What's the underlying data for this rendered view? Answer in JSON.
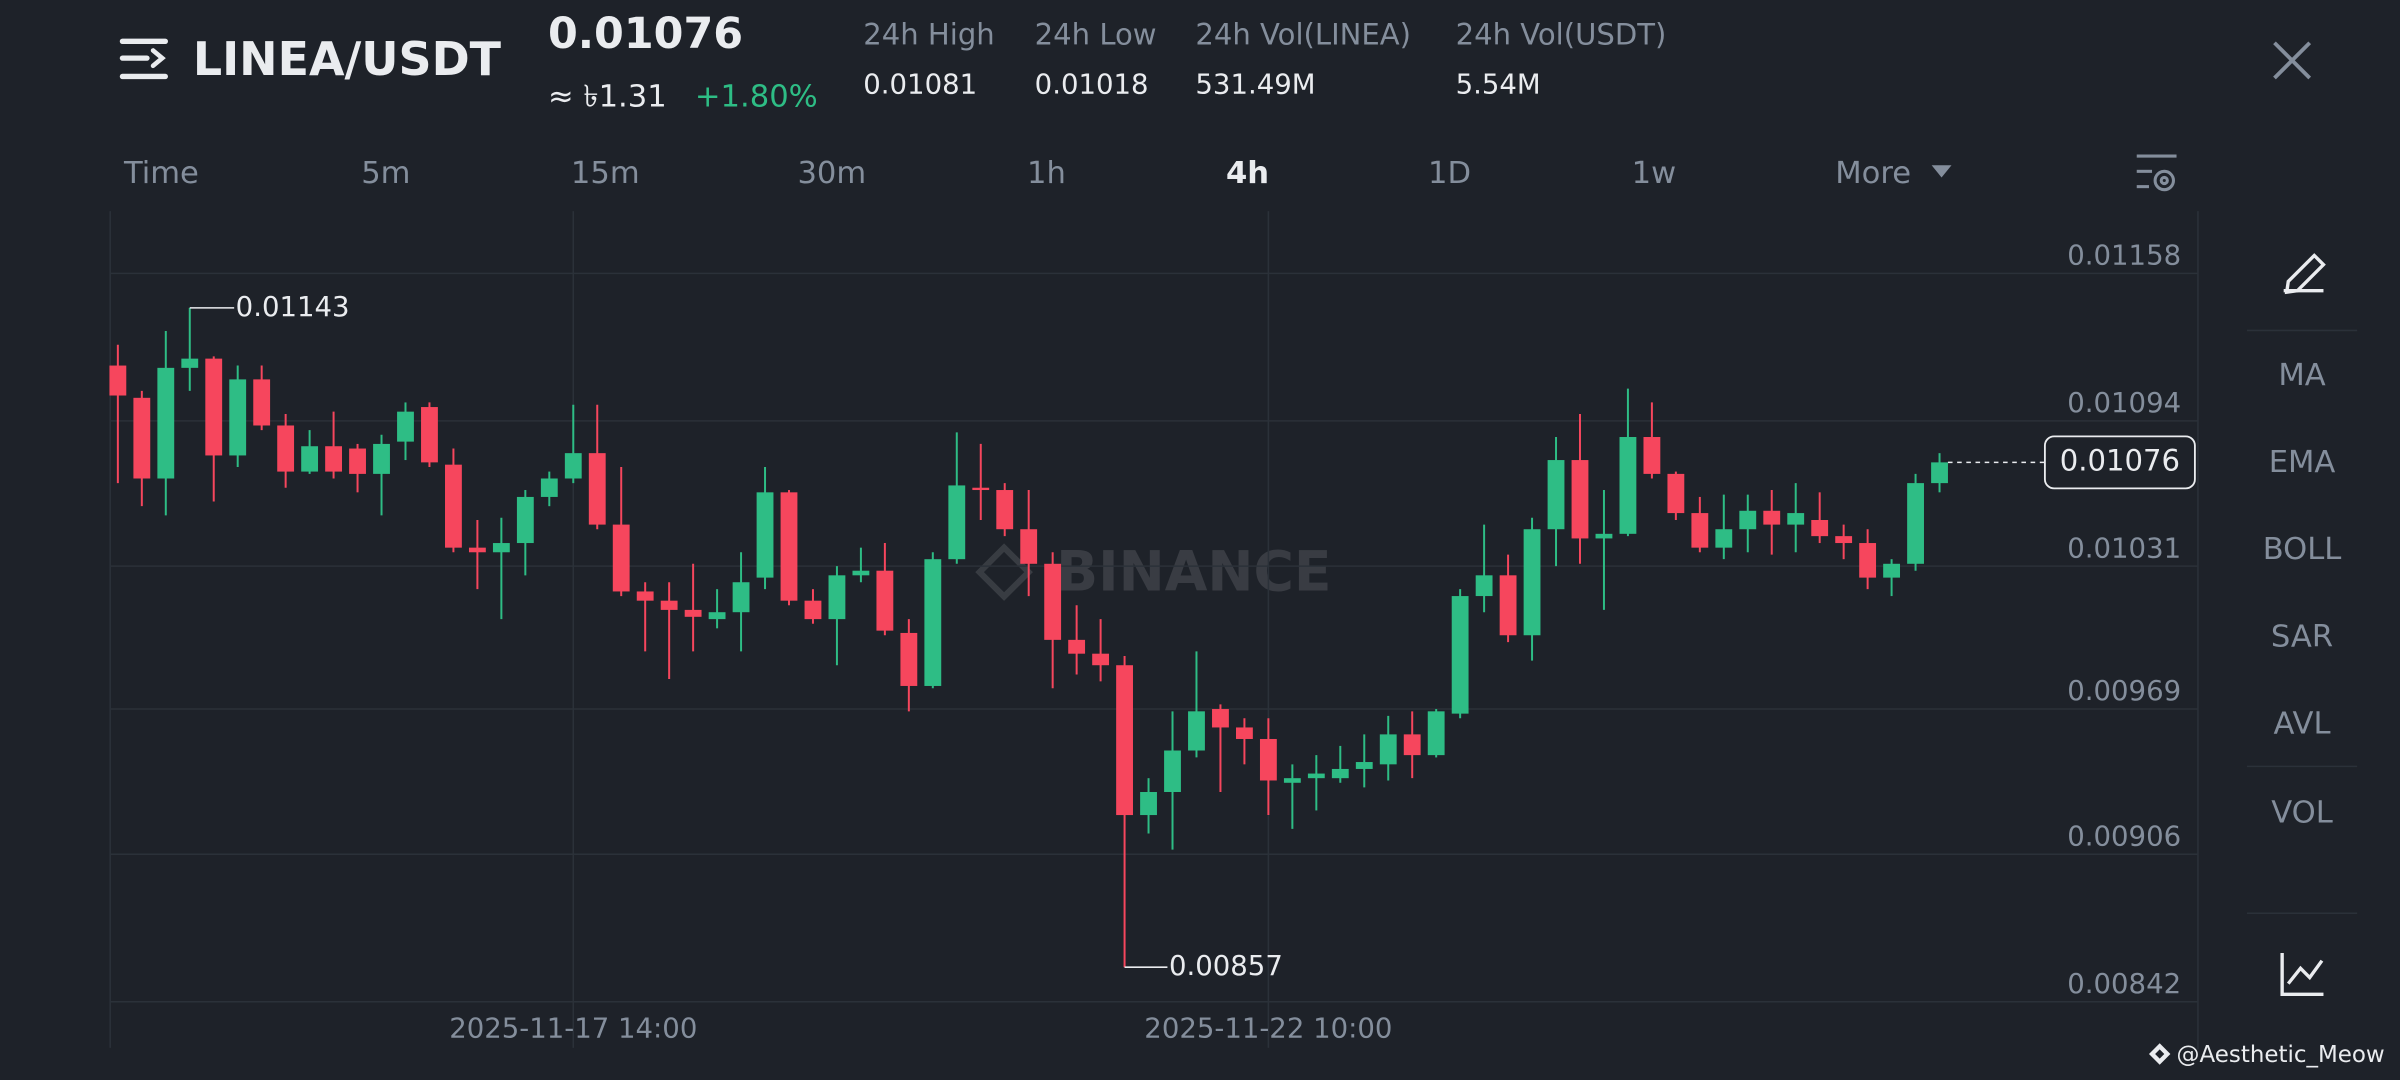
{
  "header": {
    "pair": "LINEA/USDT",
    "price": "0.01076",
    "fiat": "≈ ৳1.31",
    "change": "+1.80%",
    "stats": [
      {
        "label": "24h High",
        "value": "0.01081"
      },
      {
        "label": "24h Low",
        "value": "0.01018"
      },
      {
        "label": "24h Vol(LINEA)",
        "value": "531.49M"
      },
      {
        "label": "24h Vol(USDT)",
        "value": "5.54M"
      }
    ]
  },
  "timeframes": [
    "Time",
    "5m",
    "15m",
    "30m",
    "1h",
    "4h",
    "1D",
    "1w",
    "More"
  ],
  "active_timeframe": 5,
  "indicators": [
    "MA",
    "EMA",
    "BOLL",
    "SAR",
    "AVL",
    "VOL"
  ],
  "watermark": "BINANCE",
  "credit": "@Aesthetic_Meow",
  "chart_data": {
    "type": "candlestick",
    "categories": [
      null,
      null,
      null,
      null,
      null,
      null,
      null,
      null,
      null,
      null,
      null,
      null,
      null,
      null,
      null,
      null,
      null,
      null,
      null,
      "2025-11-17 14:00",
      null,
      null,
      null,
      null,
      null,
      null,
      null,
      null,
      null,
      null,
      null,
      null,
      null,
      null,
      null,
      null,
      null,
      null,
      null,
      null,
      null,
      null,
      null,
      null,
      null,
      null,
      null,
      null,
      "2025-11-22 10:00",
      null,
      null,
      null,
      null,
      null,
      null,
      null,
      null,
      null,
      null,
      null,
      null,
      null,
      null,
      null,
      null,
      null,
      null,
      null,
      null,
      null,
      null,
      null,
      null,
      null,
      null,
      null,
      null
    ],
    "open": [
      0.01118,
      0.01104,
      0.01069,
      0.01117,
      0.01121,
      0.01079,
      0.01112,
      0.01092,
      0.01072,
      0.01083,
      0.01082,
      0.01071,
      0.01085,
      0.011,
      0.01075,
      0.01039,
      0.01037,
      0.01041,
      0.01061,
      0.01069,
      0.0108,
      0.01049,
      0.0102,
      0.01016,
      0.01012,
      0.01008,
      0.01011,
      0.01026,
      0.01063,
      0.01016,
      0.01008,
      0.01027,
      0.01029,
      0.01002,
      0.00979,
      0.01034,
      0.01065,
      0.01064,
      0.01047,
      0.01032,
      0.00999,
      0.00993,
      0.00988,
      0.00923,
      0.00933,
      0.00951,
      0.00969,
      0.00961,
      0.00956,
      0.00937,
      0.00939,
      0.00939,
      0.00943,
      0.00945,
      0.00958,
      0.00949,
      0.00967,
      0.01018,
      0.01027,
      0.01001,
      0.01047,
      0.01077,
      0.01043,
      0.01045,
      0.01087,
      0.01071,
      0.01054,
      0.01039,
      0.01047,
      0.01055,
      0.01049,
      0.01051,
      0.01044,
      0.01041,
      0.01026,
      0.01032,
      0.01067
    ],
    "high": [
      0.01127,
      0.01107,
      0.01133,
      0.01143,
      0.01122,
      0.01118,
      0.01118,
      0.01097,
      0.0109,
      0.01098,
      0.01084,
      0.01088,
      0.01102,
      0.01102,
      0.01082,
      0.01051,
      0.01052,
      0.01064,
      0.01072,
      0.01101,
      0.01101,
      0.01074,
      0.01024,
      0.01024,
      0.01032,
      0.01021,
      0.01037,
      0.01074,
      0.01064,
      0.01021,
      0.01031,
      0.01039,
      0.01041,
      0.01008,
      0.01037,
      0.01089,
      0.01084,
      0.01067,
      0.01064,
      0.01037,
      0.01014,
      0.01008,
      0.00992,
      0.00939,
      0.00968,
      0.00994,
      0.00971,
      0.00965,
      0.00965,
      0.00945,
      0.00949,
      0.00953,
      0.00958,
      0.00966,
      0.00968,
      0.00969,
      0.01021,
      0.01049,
      0.01036,
      0.01052,
      0.01087,
      0.01097,
      0.01064,
      0.01108,
      0.01102,
      0.01072,
      0.01061,
      0.01062,
      0.01062,
      0.01064,
      0.01067,
      0.01063,
      0.01049,
      0.01047,
      0.01034,
      0.01071,
      0.0108
    ],
    "low": [
      0.01067,
      0.01057,
      0.01053,
      0.01107,
      0.01059,
      0.01074,
      0.0109,
      0.01065,
      0.01071,
      0.01069,
      0.01063,
      0.01053,
      0.01077,
      0.01074,
      0.01037,
      0.01021,
      0.01008,
      0.01027,
      0.01057,
      0.01067,
      0.01047,
      0.01018,
      0.00994,
      0.00982,
      0.00994,
      0.01004,
      0.00994,
      0.01021,
      0.01014,
      0.01006,
      0.00988,
      0.01024,
      0.01001,
      0.00968,
      0.00978,
      0.01032,
      0.01051,
      0.01044,
      0.01018,
      0.00978,
      0.00984,
      0.00981,
      0.00857,
      0.00915,
      0.00908,
      0.00948,
      0.00933,
      0.00945,
      0.00923,
      0.00917,
      0.00925,
      0.00937,
      0.00935,
      0.00938,
      0.00939,
      0.00948,
      0.00965,
      0.01011,
      0.00998,
      0.0099,
      0.01031,
      0.01032,
      0.01012,
      0.01044,
      0.01069,
      0.01051,
      0.01037,
      0.01034,
      0.01037,
      0.01036,
      0.01037,
      0.01041,
      0.01034,
      0.01021,
      0.01018,
      0.01029,
      0.01063
    ],
    "close": [
      0.01105,
      0.01069,
      0.01117,
      0.01121,
      0.01079,
      0.01112,
      0.01092,
      0.01072,
      0.01083,
      0.01072,
      0.01071,
      0.01084,
      0.01098,
      0.01076,
      0.01039,
      0.01037,
      0.01041,
      0.01061,
      0.01069,
      0.0108,
      0.01049,
      0.0102,
      0.01016,
      0.01012,
      0.01009,
      0.01011,
      0.01024,
      0.01063,
      0.01016,
      0.01008,
      0.01027,
      0.01029,
      0.01003,
      0.00979,
      0.01034,
      0.01066,
      0.01064,
      0.01047,
      0.01032,
      0.00999,
      0.00993,
      0.00988,
      0.00923,
      0.00933,
      0.00951,
      0.00968,
      0.00961,
      0.00956,
      0.00938,
      0.00939,
      0.00941,
      0.00943,
      0.00946,
      0.00958,
      0.00949,
      0.00968,
      0.01018,
      0.01027,
      0.01001,
      0.01047,
      0.01077,
      0.01043,
      0.01045,
      0.01087,
      0.01071,
      0.01054,
      0.01039,
      0.01047,
      0.01055,
      0.01049,
      0.01054,
      0.01044,
      0.01041,
      0.01026,
      0.01032,
      0.01067,
      0.01076
    ],
    "up_color": "#2ebd85",
    "down_color": "#f6465d",
    "ylim": [
      0.00822,
      0.01185
    ],
    "yticks": [
      0.00842,
      0.00906,
      0.00969,
      0.01031,
      0.01094,
      0.01158
    ],
    "grid": true
  }
}
